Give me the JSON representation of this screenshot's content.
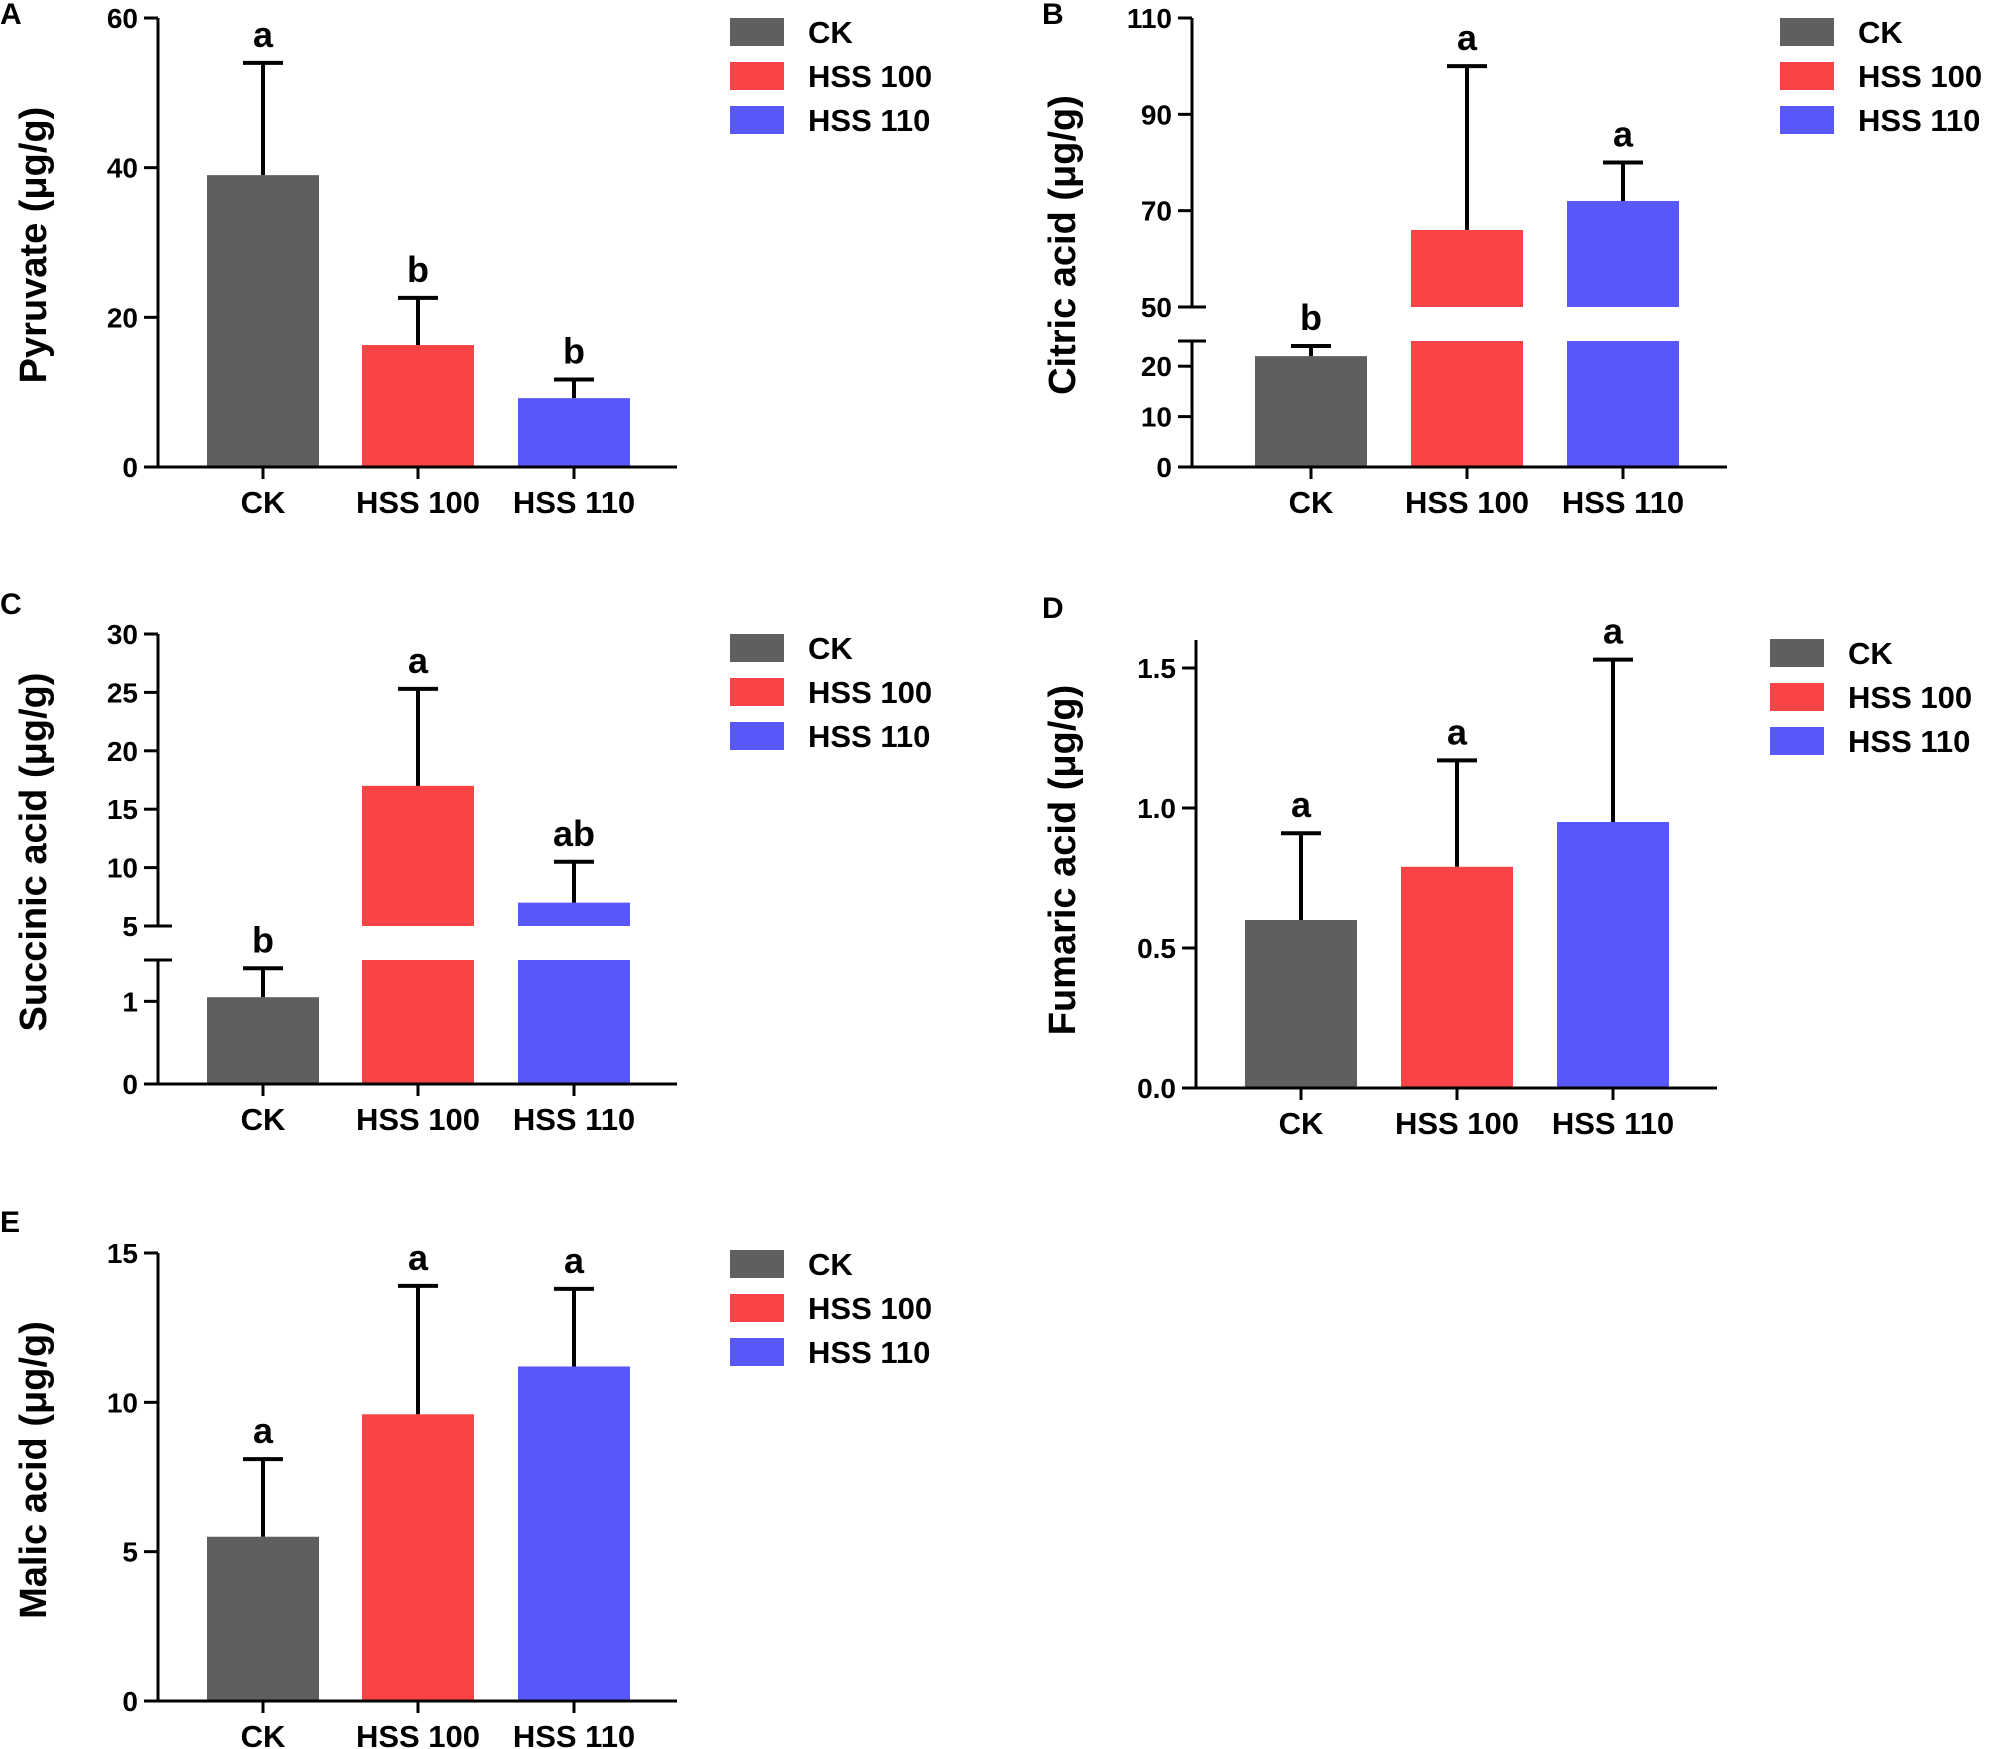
{
  "colors": {
    "CK": "#5f5f5f",
    "HSS 100": "#f94346",
    "HSS 110": "#5757fa",
    "axis": "#000000"
  },
  "legend_entries": [
    "CK",
    "HSS 100",
    "HSS 110"
  ],
  "chart_data": [
    {
      "panel": "A",
      "type": "bar",
      "ylabel": "Pyruvate (μg/g)",
      "categories": [
        "CK",
        "HSS 100",
        "HSS 110"
      ],
      "values": [
        39,
        16.3,
        9.2
      ],
      "errors": [
        15,
        6.3,
        2.5
      ],
      "letters": [
        "a",
        "b",
        "b"
      ],
      "ylim": [
        0,
        60
      ],
      "ticks": [
        0,
        20,
        40,
        60
      ],
      "tick_labels": [
        "0",
        "20",
        "40",
        "60"
      ],
      "legend": [
        "CK",
        "HSS 100",
        "HSS 110"
      ]
    },
    {
      "panel": "B",
      "type": "bar",
      "ylabel": "Citric acid (μg/g)",
      "categories": [
        "CK",
        "HSS 100",
        "HSS 110"
      ],
      "values": [
        22,
        66,
        72
      ],
      "errors": [
        2,
        34,
        8
      ],
      "letters": [
        "b",
        "a",
        "a"
      ],
      "broken_axis": {
        "lower": [
          0,
          25
        ],
        "upper": [
          50,
          110
        ]
      },
      "ticks": [
        0,
        10,
        20,
        50,
        70,
        90,
        110
      ],
      "tick_labels": [
        "0",
        "10",
        "20",
        "50",
        "70",
        "90",
        "110"
      ],
      "legend": [
        "CK",
        "HSS 100",
        "HSS 110"
      ]
    },
    {
      "panel": "C",
      "type": "bar",
      "ylabel": "Succinic acid (μg/g)",
      "categories": [
        "CK",
        "HSS 100",
        "HSS 110"
      ],
      "values": [
        1.05,
        17,
        7
      ],
      "errors": [
        0.35,
        8.3,
        3.5
      ],
      "letters": [
        "b",
        "a",
        "ab"
      ],
      "broken_axis": {
        "lower": [
          0,
          1.5
        ],
        "upper": [
          5,
          30
        ]
      },
      "ticks": [
        0,
        1,
        5,
        10,
        15,
        20,
        25,
        30
      ],
      "tick_labels": [
        "0",
        "1",
        "5",
        "10",
        "15",
        "20",
        "25",
        "30"
      ],
      "legend": [
        "CK",
        "HSS 100",
        "HSS 110"
      ]
    },
    {
      "panel": "D",
      "type": "bar",
      "ylabel": "Fumaric acid (μg/g)",
      "categories": [
        "CK",
        "HSS 100",
        "HSS 110"
      ],
      "values": [
        0.6,
        0.79,
        0.95
      ],
      "errors": [
        0.31,
        0.38,
        0.58
      ],
      "letters": [
        "a",
        "a",
        "a"
      ],
      "ylim": [
        0,
        1.6
      ],
      "ticks": [
        0,
        0.5,
        1.0,
        1.5
      ],
      "tick_labels": [
        "0.0",
        "0.5",
        "1.0",
        "1.5"
      ],
      "legend": [
        "CK",
        "HSS 100",
        "HSS 110"
      ]
    },
    {
      "panel": "E",
      "type": "bar",
      "ylabel": "Malic acid (μg/g)",
      "categories": [
        "CK",
        "HSS 100",
        "HSS 110"
      ],
      "values": [
        5.5,
        9.6,
        11.2
      ],
      "errors": [
        2.6,
        4.3,
        2.6
      ],
      "letters": [
        "a",
        "a",
        "a"
      ],
      "ylim": [
        0,
        15
      ],
      "ticks": [
        0,
        5,
        10,
        15
      ],
      "tick_labels": [
        "0",
        "5",
        "10",
        "15"
      ],
      "legend": [
        "CK",
        "HSS 100",
        "HSS 110"
      ]
    }
  ]
}
